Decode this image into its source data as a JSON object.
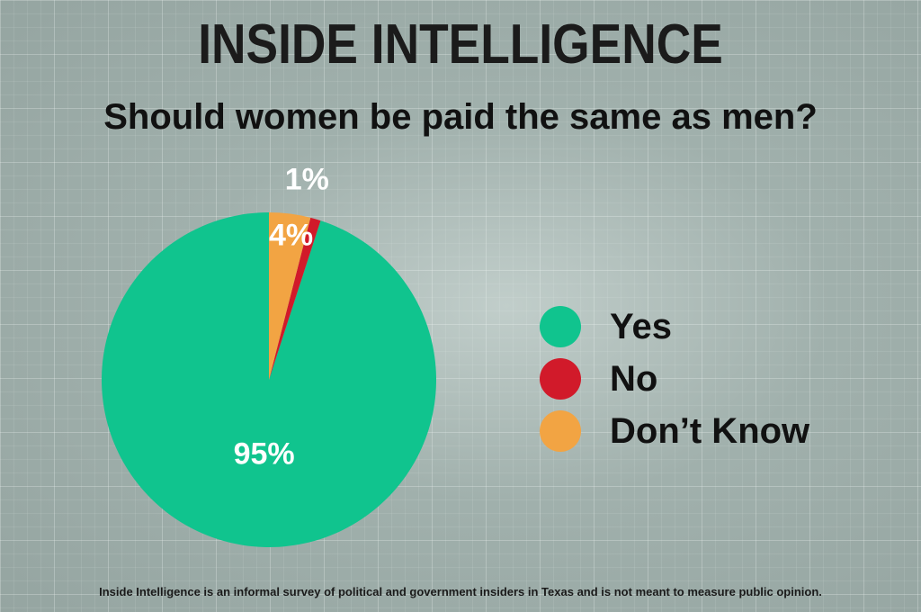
{
  "header": {
    "brand": "INSIDE INTELLIGENCE",
    "question": "Should women be paid the same as men?"
  },
  "chart_data": {
    "type": "pie",
    "title": "Should women be paid the same as men?",
    "slices": [
      {
        "label": "Yes",
        "value": 95,
        "display": "95%",
        "color": "#10c48e"
      },
      {
        "label": "No",
        "value": 1,
        "display": "1%",
        "color": "#d11a2a"
      },
      {
        "label": "Don’t Know",
        "value": 4,
        "display": "4%",
        "color": "#f2a443"
      }
    ],
    "legend_position": "right"
  },
  "footer": {
    "note": "Inside Intelligence is an informal survey of political and government insiders in Texas and is not meant to measure public opinion."
  }
}
